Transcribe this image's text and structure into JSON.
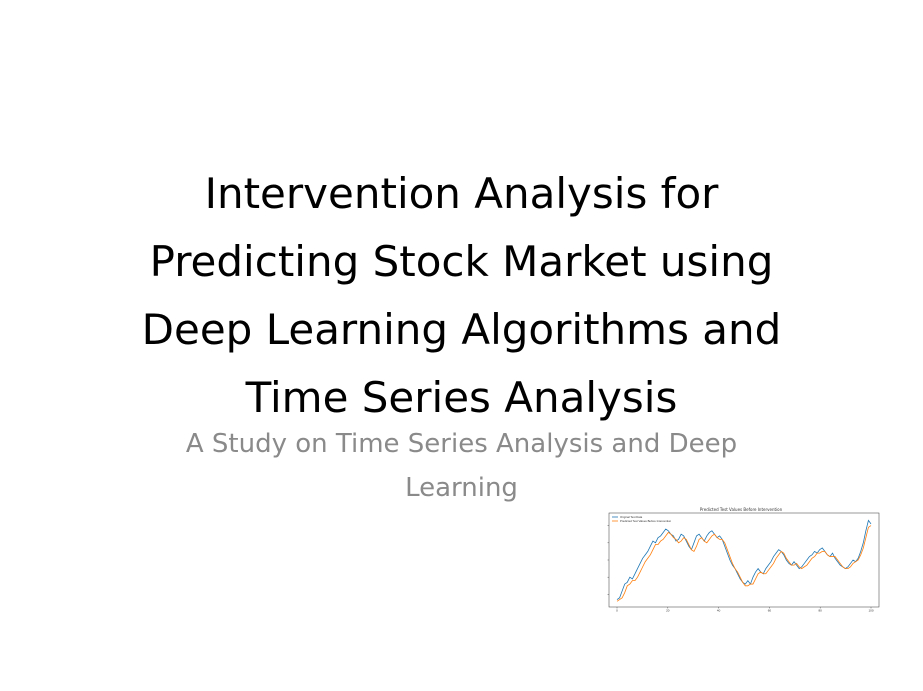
{
  "slide": {
    "title": "Intervention Analysis for\nPredicting Stock Market using\nDeep Learning Algorithms and\nTime Series Analysis",
    "subtitle": "A Study on Time Series Analysis and Deep\nLearning"
  },
  "chart_data": {
    "type": "line",
    "title": "Predicted Test Values Before Intervention",
    "legend": [
      "Original Test Data",
      "Predicted Test Values Before Intervention"
    ],
    "legend_position": "top-left",
    "colors": [
      "#1f77b4",
      "#ff7f0e"
    ],
    "xlim": [
      0,
      100
    ],
    "x_ticks": [
      "0",
      "20",
      "40",
      "60",
      "80",
      "100"
    ],
    "series": [
      {
        "name": "Original Test Data",
        "values": [
          0.04,
          0.06,
          0.14,
          0.22,
          0.24,
          0.3,
          0.28,
          0.34,
          0.4,
          0.46,
          0.52,
          0.56,
          0.6,
          0.66,
          0.72,
          0.7,
          0.76,
          0.78,
          0.82,
          0.86,
          0.84,
          0.8,
          0.78,
          0.72,
          0.74,
          0.8,
          0.78,
          0.72,
          0.66,
          0.62,
          0.7,
          0.78,
          0.8,
          0.76,
          0.72,
          0.78,
          0.82,
          0.84,
          0.8,
          0.76,
          0.78,
          0.74,
          0.66,
          0.58,
          0.5,
          0.44,
          0.4,
          0.34,
          0.28,
          0.24,
          0.22,
          0.26,
          0.22,
          0.3,
          0.36,
          0.4,
          0.36,
          0.34,
          0.4,
          0.44,
          0.48,
          0.54,
          0.58,
          0.62,
          0.6,
          0.56,
          0.5,
          0.46,
          0.44,
          0.48,
          0.44,
          0.4,
          0.42,
          0.46,
          0.5,
          0.54,
          0.56,
          0.6,
          0.58,
          0.62,
          0.64,
          0.6,
          0.56,
          0.54,
          0.58,
          0.52,
          0.48,
          0.44,
          0.42,
          0.4,
          0.42,
          0.46,
          0.5,
          0.48,
          0.52,
          0.6,
          0.7,
          0.84,
          0.96,
          0.92
        ]
      },
      {
        "name": "Predicted Test Values Before Intervention",
        "values": [
          0.02,
          0.04,
          0.06,
          0.12,
          0.2,
          0.22,
          0.26,
          0.26,
          0.3,
          0.36,
          0.42,
          0.48,
          0.52,
          0.56,
          0.62,
          0.68,
          0.68,
          0.72,
          0.74,
          0.78,
          0.82,
          0.8,
          0.76,
          0.74,
          0.7,
          0.72,
          0.76,
          0.74,
          0.68,
          0.62,
          0.6,
          0.66,
          0.74,
          0.76,
          0.72,
          0.7,
          0.74,
          0.78,
          0.8,
          0.76,
          0.74,
          0.74,
          0.7,
          0.62,
          0.54,
          0.46,
          0.4,
          0.36,
          0.3,
          0.24,
          0.2,
          0.2,
          0.22,
          0.22,
          0.28,
          0.34,
          0.36,
          0.34,
          0.34,
          0.38,
          0.42,
          0.46,
          0.52,
          0.56,
          0.6,
          0.58,
          0.52,
          0.48,
          0.44,
          0.44,
          0.46,
          0.42,
          0.4,
          0.42,
          0.44,
          0.48,
          0.52,
          0.54,
          0.58,
          0.58,
          0.6,
          0.6,
          0.56,
          0.54,
          0.54,
          0.54,
          0.5,
          0.46,
          0.42,
          0.4,
          0.4,
          0.42,
          0.46,
          0.48,
          0.5,
          0.56,
          0.64,
          0.76,
          0.88,
          0.9
        ]
      }
    ]
  }
}
